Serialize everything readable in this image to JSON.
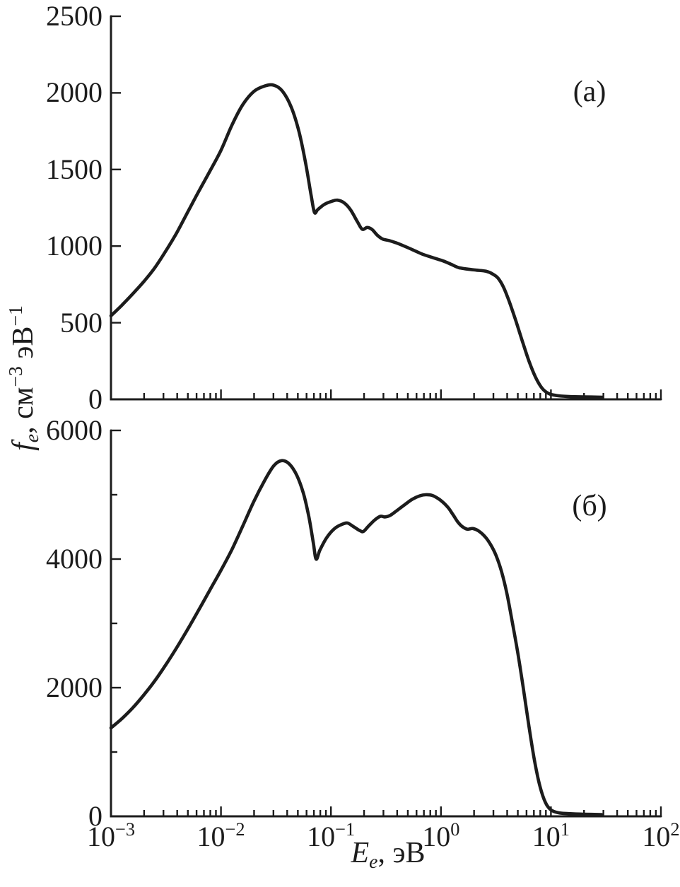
{
  "figure": {
    "background": "#ffffff",
    "line_color": "#1c1c1c",
    "x_axis_title": {
      "symbol": "E",
      "symbol_sub": "e",
      "unit": ", эВ"
    },
    "y_axis_title": {
      "symbol": "f",
      "symbol_sub": "e",
      "unit_pre": ", см",
      "exp_1": "−3",
      "unit_mid": " эВ",
      "exp_2": "−1"
    }
  },
  "chart_data": [
    {
      "type": "line",
      "panel_label": "(а)",
      "x_scale": "log",
      "xlabel": "E_e, эВ",
      "ylabel": "f_e, см^−3 эВ^−1",
      "x_range_eV": [
        0.001,
        100
      ],
      "x_tick_exponents": [
        -3,
        -2,
        -1,
        0,
        1,
        2
      ],
      "show_x_tick_labels": false,
      "ylim": [
        0,
        2500
      ],
      "y_ticks": [
        0,
        500,
        1000,
        1500,
        2000,
        2500
      ],
      "y_minor_ticks": [],
      "grid": false,
      "legend": "none",
      "series": [
        {
          "name": "electron-distribution-function-a",
          "points_log10eV_value": [
            [
              -3.0,
              545
            ],
            [
              -2.9,
              615
            ],
            [
              -2.8,
              690
            ],
            [
              -2.7,
              770
            ],
            [
              -2.6,
              860
            ],
            [
              -2.5,
              970
            ],
            [
              -2.4,
              1090
            ],
            [
              -2.3,
              1225
            ],
            [
              -2.2,
              1360
            ],
            [
              -2.1,
              1490
            ],
            [
              -2.0,
              1625
            ],
            [
              -1.9,
              1790
            ],
            [
              -1.8,
              1925
            ],
            [
              -1.7,
              2010
            ],
            [
              -1.6,
              2045
            ],
            [
              -1.52,
              2050
            ],
            [
              -1.44,
              2010
            ],
            [
              -1.36,
              1905
            ],
            [
              -1.29,
              1745
            ],
            [
              -1.23,
              1540
            ],
            [
              -1.18,
              1330
            ],
            [
              -1.15,
              1220
            ],
            [
              -1.12,
              1238
            ],
            [
              -1.06,
              1272
            ],
            [
              -0.99,
              1293
            ],
            [
              -0.94,
              1300
            ],
            [
              -0.88,
              1282
            ],
            [
              -0.82,
              1235
            ],
            [
              -0.76,
              1160
            ],
            [
              -0.715,
              1110
            ],
            [
              -0.67,
              1122
            ],
            [
              -0.625,
              1108
            ],
            [
              -0.58,
              1072
            ],
            [
              -0.53,
              1046
            ],
            [
              -0.47,
              1036
            ],
            [
              -0.41,
              1022
            ],
            [
              -0.34,
              1002
            ],
            [
              -0.26,
              977
            ],
            [
              -0.17,
              948
            ],
            [
              -0.08,
              926
            ],
            [
              0.02,
              903
            ],
            [
              0.09,
              882
            ],
            [
              0.16,
              860
            ],
            [
              0.24,
              850
            ],
            [
              0.32,
              843
            ],
            [
              0.41,
              836
            ],
            [
              0.47,
              818
            ],
            [
              0.52,
              790
            ],
            [
              0.57,
              730
            ],
            [
              0.62,
              640
            ],
            [
              0.68,
              515
            ],
            [
              0.74,
              380
            ],
            [
              0.8,
              250
            ],
            [
              0.86,
              145
            ],
            [
              0.92,
              72
            ],
            [
              0.98,
              38
            ],
            [
              1.05,
              25
            ],
            [
              1.15,
              19
            ],
            [
              1.3,
              16
            ],
            [
              1.47,
              14
            ]
          ]
        }
      ]
    },
    {
      "type": "line",
      "panel_label": "(б)",
      "x_scale": "log",
      "xlabel": "E_e, эВ",
      "ylabel": "f_e, см^−3 эВ^−1",
      "x_range_eV": [
        0.001,
        100
      ],
      "x_tick_exponents": [
        -3,
        -2,
        -1,
        0,
        1,
        2
      ],
      "show_x_tick_labels": true,
      "ylim": [
        0,
        6000
      ],
      "y_ticks": [
        0,
        2000,
        4000,
        6000
      ],
      "y_minor_ticks": [
        1000,
        3000,
        5000
      ],
      "grid": false,
      "legend": "none",
      "series": [
        {
          "name": "electron-distribution-function-b",
          "points_log10eV_value": [
            [
              -3.0,
              1375
            ],
            [
              -2.9,
              1520
            ],
            [
              -2.8,
              1690
            ],
            [
              -2.7,
              1890
            ],
            [
              -2.6,
              2110
            ],
            [
              -2.5,
              2360
            ],
            [
              -2.4,
              2630
            ],
            [
              -2.3,
              2915
            ],
            [
              -2.2,
              3215
            ],
            [
              -2.1,
              3520
            ],
            [
              -2.0,
              3825
            ],
            [
              -1.9,
              4150
            ],
            [
              -1.8,
              4520
            ],
            [
              -1.7,
              4900
            ],
            [
              -1.6,
              5230
            ],
            [
              -1.52,
              5450
            ],
            [
              -1.45,
              5530
            ],
            [
              -1.38,
              5480
            ],
            [
              -1.31,
              5300
            ],
            [
              -1.25,
              5020
            ],
            [
              -1.2,
              4650
            ],
            [
              -1.16,
              4250
            ],
            [
              -1.135,
              4000
            ],
            [
              -1.1,
              4140
            ],
            [
              -1.04,
              4330
            ],
            [
              -0.97,
              4470
            ],
            [
              -0.9,
              4540
            ],
            [
              -0.85,
              4560
            ],
            [
              -0.8,
              4510
            ],
            [
              -0.74,
              4445
            ],
            [
              -0.705,
              4430
            ],
            [
              -0.66,
              4510
            ],
            [
              -0.6,
              4610
            ],
            [
              -0.55,
              4665
            ],
            [
              -0.51,
              4655
            ],
            [
              -0.46,
              4680
            ],
            [
              -0.4,
              4755
            ],
            [
              -0.33,
              4845
            ],
            [
              -0.26,
              4930
            ],
            [
              -0.19,
              4985
            ],
            [
              -0.14,
              5000
            ],
            [
              -0.08,
              4990
            ],
            [
              -0.02,
              4935
            ],
            [
              0.03,
              4865
            ],
            [
              0.07,
              4790
            ],
            [
              0.11,
              4690
            ],
            [
              0.15,
              4585
            ],
            [
              0.19,
              4510
            ],
            [
              0.24,
              4465
            ],
            [
              0.29,
              4475
            ],
            [
              0.34,
              4440
            ],
            [
              0.4,
              4350
            ],
            [
              0.45,
              4230
            ],
            [
              0.5,
              4060
            ],
            [
              0.55,
              3810
            ],
            [
              0.6,
              3460
            ],
            [
              0.65,
              3010
            ],
            [
              0.7,
              2530
            ],
            [
              0.75,
              1980
            ],
            [
              0.8,
              1400
            ],
            [
              0.85,
              870
            ],
            [
              0.9,
              470
            ],
            [
              0.95,
              215
            ],
            [
              1.0,
              100
            ],
            [
              1.07,
              55
            ],
            [
              1.16,
              42
            ],
            [
              1.3,
              33
            ],
            [
              1.46,
              28
            ]
          ]
        }
      ]
    }
  ]
}
